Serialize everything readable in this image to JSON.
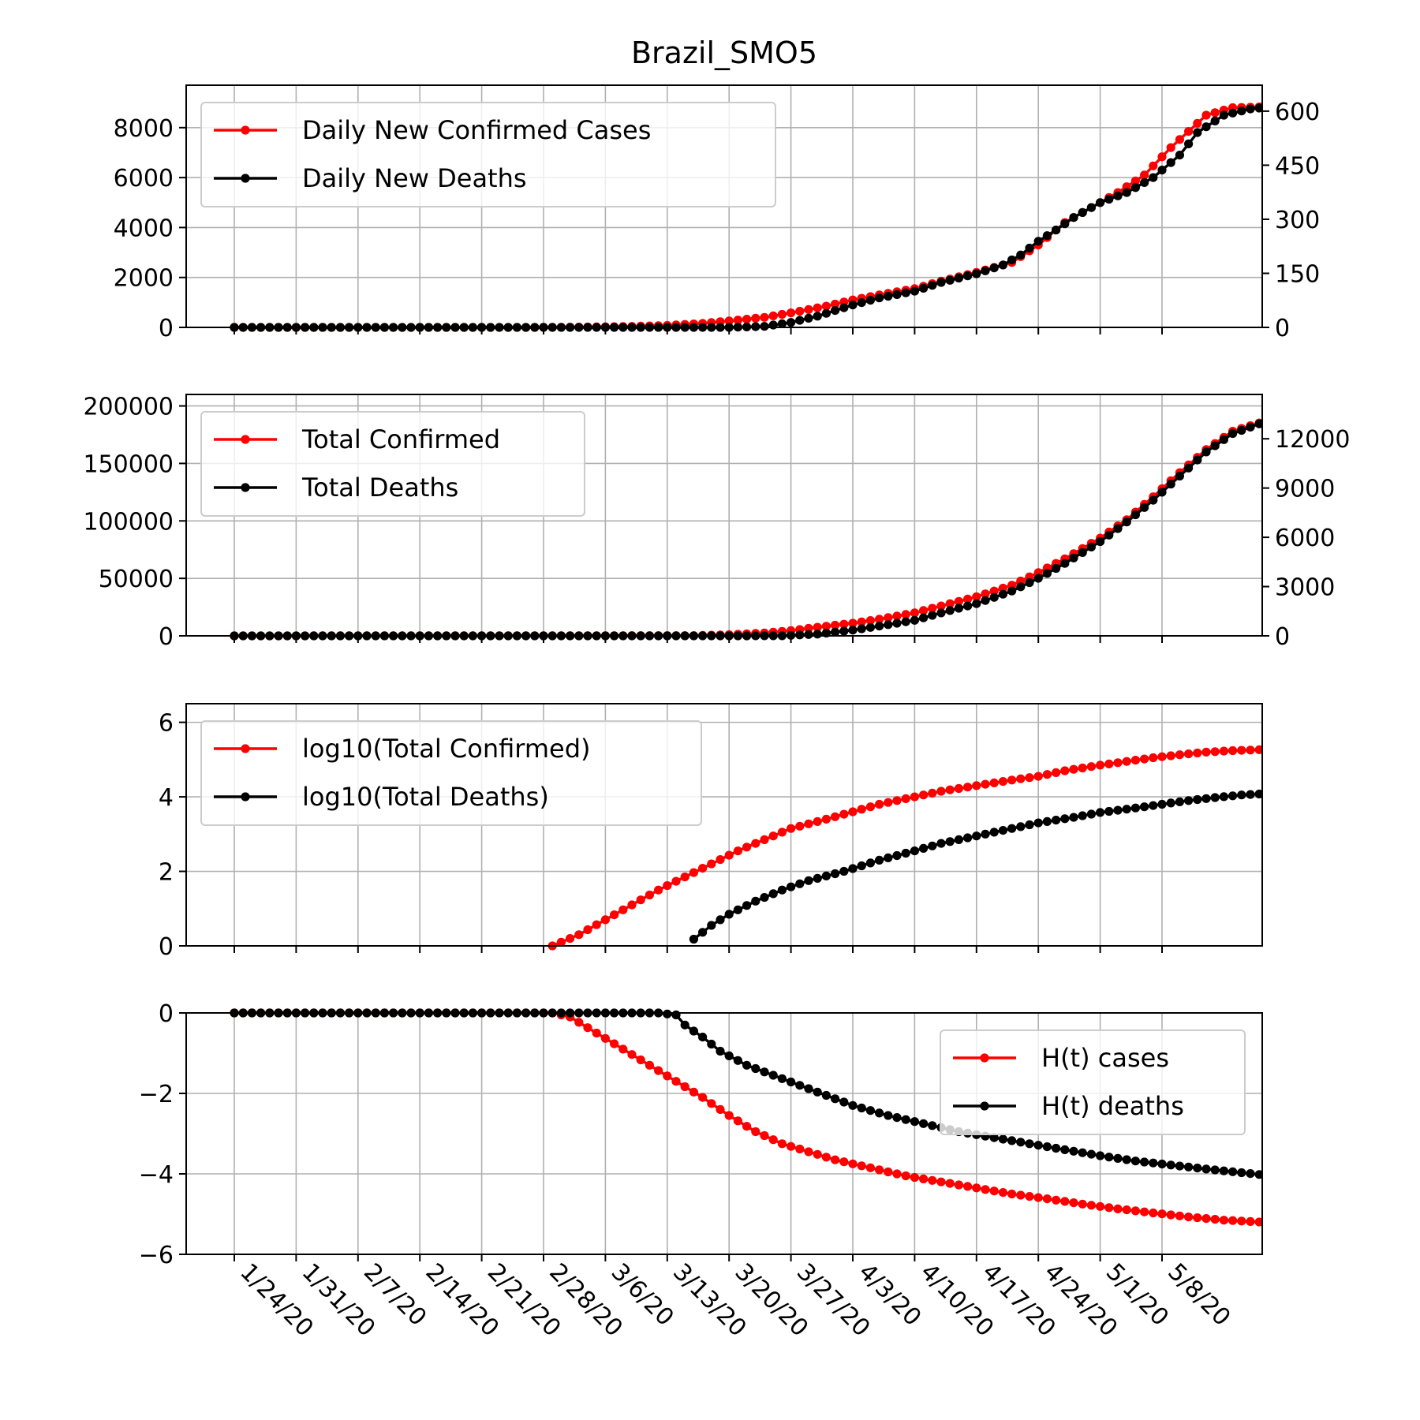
{
  "chart_data": {
    "type": "line",
    "title": "Brazil_SMO5",
    "x_tick_labels": [
      "1/24/20",
      "1/31/20",
      "2/7/20",
      "2/14/20",
      "2/21/20",
      "2/28/20",
      "3/6/20",
      "3/13/20",
      "3/20/20",
      "3/27/20",
      "4/3/20",
      "4/10/20",
      "4/17/20",
      "4/24/20",
      "5/1/20",
      "5/8/20"
    ],
    "x_tick_days": [
      0,
      7,
      14,
      21,
      28,
      35,
      42,
      49,
      56,
      63,
      70,
      77,
      84,
      91,
      98,
      105
    ],
    "n_days": 112,
    "grid": true,
    "panels": [
      {
        "id": "daily",
        "ylim_left": [
          0,
          9700
        ],
        "yticks_left": [
          0,
          2000,
          4000,
          6000,
          8000
        ],
        "ylim_right": [
          0,
          672
        ],
        "yticks_right": [
          0,
          150,
          300,
          450,
          600
        ],
        "legend_loc": "upper-left",
        "series": [
          {
            "name": "Daily New Confirmed Cases",
            "color": "#ff0000",
            "axis": "left",
            "points": [
              [
                0,
                0
              ],
              [
                34,
                0
              ],
              [
                40,
                15
              ],
              [
                45,
                40
              ],
              [
                49,
                80
              ],
              [
                53,
                160
              ],
              [
                56,
                260
              ],
              [
                60,
                400
              ],
              [
                63,
                580
              ],
              [
                67,
                850
              ],
              [
                70,
                1100
              ],
              [
                73,
                1300
              ],
              [
                77,
                1550
              ],
              [
                80,
                1850
              ],
              [
                84,
                2200
              ],
              [
                88,
                2600
              ],
              [
                91,
                3300
              ],
              [
                94,
                4200
              ],
              [
                97,
                4800
              ],
              [
                100,
                5400
              ],
              [
                103,
                6100
              ],
              [
                106,
                7200
              ],
              [
                110,
                8500
              ],
              [
                113,
                8800
              ],
              [
                118,
                8850
              ]
            ]
          },
          {
            "name": "Daily New Deaths",
            "color": "#000000",
            "axis": "left",
            "points": [
              [
                0,
                0
              ],
              [
                56,
                0
              ],
              [
                60,
                40
              ],
              [
                63,
                200
              ],
              [
                66,
                450
              ],
              [
                70,
                900
              ],
              [
                73,
                1180
              ],
              [
                77,
                1450
              ],
              [
                80,
                1800
              ],
              [
                84,
                2150
              ],
              [
                87,
                2500
              ],
              [
                89,
                2900
              ],
              [
                91,
                3450
              ],
              [
                93,
                3900
              ],
              [
                95,
                4400
              ],
              [
                98,
                5000
              ],
              [
                101,
                5400
              ],
              [
                104,
                6000
              ],
              [
                107,
                6900
              ],
              [
                109,
                7800
              ],
              [
                112,
                8500
              ],
              [
                115,
                8750
              ],
              [
                118,
                8850
              ]
            ]
          }
        ]
      },
      {
        "id": "total",
        "ylim_left": [
          0,
          210000
        ],
        "yticks_left": [
          0,
          50000,
          100000,
          150000,
          200000
        ],
        "ylim_right": [
          0,
          14700
        ],
        "yticks_right": [
          0,
          3000,
          6000,
          9000,
          12000
        ],
        "legend_loc": "upper-left",
        "series": [
          {
            "name": "Total Confirmed",
            "color": "#ff0000",
            "axis": "left",
            "points": [
              [
                0,
                0
              ],
              [
                52,
                200
              ],
              [
                56,
                1000
              ],
              [
                60,
                2500
              ],
              [
                63,
                4500
              ],
              [
                66,
                7500
              ],
              [
                70,
                11000
              ],
              [
                73,
                14500
              ],
              [
                77,
                20000
              ],
              [
                80,
                26000
              ],
              [
                84,
                34000
              ],
              [
                88,
                44000
              ],
              [
                91,
                55000
              ],
              [
                94,
                67000
              ],
              [
                98,
                85000
              ],
              [
                101,
                101000
              ],
              [
                104,
                121000
              ],
              [
                107,
                142000
              ],
              [
                110,
                162000
              ],
              [
                113,
                178000
              ],
              [
                118,
                190000
              ]
            ]
          },
          {
            "name": "Total Deaths",
            "color": "#000000",
            "axis": "left",
            "points": [
              [
                0,
                0
              ],
              [
                56,
                0
              ],
              [
                62,
                100
              ],
              [
                66,
                1500
              ],
              [
                70,
                5000
              ],
              [
                73,
                8500
              ],
              [
                77,
                13500
              ],
              [
                80,
                20000
              ],
              [
                84,
                28000
              ],
              [
                88,
                39000
              ],
              [
                91,
                50000
              ],
              [
                94,
                63000
              ],
              [
                98,
                82000
              ],
              [
                101,
                99000
              ],
              [
                104,
                118000
              ],
              [
                107,
                139000
              ],
              [
                110,
                160000
              ],
              [
                113,
                176000
              ],
              [
                118,
                190000
              ]
            ]
          }
        ]
      },
      {
        "id": "log",
        "ylim_left": [
          0,
          6.5
        ],
        "yticks_left": [
          0,
          2,
          4,
          6
        ],
        "legend_loc": "upper-left",
        "series": [
          {
            "name": "log10(Total Confirmed)",
            "color": "#ff0000",
            "axis": "left",
            "points": [
              [
                36,
                0
              ],
              [
                39,
                0.3
              ],
              [
                42,
                0.7
              ],
              [
                45,
                1.1
              ],
              [
                48,
                1.5
              ],
              [
                51,
                1.85
              ],
              [
                54,
                2.2
              ],
              [
                57,
                2.55
              ],
              [
                60,
                2.85
              ],
              [
                63,
                3.15
              ],
              [
                67,
                3.4
              ],
              [
                70,
                3.6
              ],
              [
                73,
                3.8
              ],
              [
                77,
                4.0
              ],
              [
                80,
                4.15
              ],
              [
                84,
                4.3
              ],
              [
                88,
                4.45
              ],
              [
                91,
                4.55
              ],
              [
                94,
                4.7
              ],
              [
                98,
                4.85
              ],
              [
                101,
                4.95
              ],
              [
                104,
                5.05
              ],
              [
                107,
                5.13
              ],
              [
                110,
                5.2
              ],
              [
                113,
                5.24
              ],
              [
                118,
                5.28
              ]
            ]
          },
          {
            "name": "log10(Total Deaths)",
            "color": "#000000",
            "axis": "left",
            "points": [
              [
                52,
                0.18
              ],
              [
                54,
                0.55
              ],
              [
                56,
                0.85
              ],
              [
                59,
                1.2
              ],
              [
                62,
                1.5
              ],
              [
                65,
                1.75
              ],
              [
                69,
                2.0
              ],
              [
                73,
                2.3
              ],
              [
                77,
                2.55
              ],
              [
                80,
                2.75
              ],
              [
                84,
                2.95
              ],
              [
                88,
                3.15
              ],
              [
                91,
                3.3
              ],
              [
                95,
                3.45
              ],
              [
                98,
                3.58
              ],
              [
                102,
                3.7
              ],
              [
                105,
                3.8
              ],
              [
                108,
                3.9
              ],
              [
                111,
                3.98
              ],
              [
                114,
                4.05
              ],
              [
                118,
                4.1
              ]
            ]
          }
        ]
      },
      {
        "id": "ht",
        "ylim_left": [
          -6,
          0
        ],
        "yticks_left": [
          -6,
          -4,
          -2,
          0
        ],
        "legend_loc": "upper-right",
        "series": [
          {
            "name": "H(t) cases",
            "color": "#ff0000",
            "axis": "left",
            "points": [
              [
                0,
                0
              ],
              [
                36,
                0
              ],
              [
                38,
                -0.1
              ],
              [
                41,
                -0.5
              ],
              [
                44,
                -0.9
              ],
              [
                47,
                -1.3
              ],
              [
                50,
                -1.7
              ],
              [
                53,
                -2.1
              ],
              [
                56,
                -2.55
              ],
              [
                59,
                -2.95
              ],
              [
                62,
                -3.25
              ],
              [
                65,
                -3.45
              ],
              [
                68,
                -3.65
              ],
              [
                72,
                -3.85
              ],
              [
                76,
                -4.05
              ],
              [
                80,
                -4.2
              ],
              [
                84,
                -4.35
              ],
              [
                88,
                -4.5
              ],
              [
                92,
                -4.62
              ],
              [
                96,
                -4.75
              ],
              [
                100,
                -4.87
              ],
              [
                104,
                -4.97
              ],
              [
                108,
                -5.07
              ],
              [
                112,
                -5.15
              ],
              [
                118,
                -5.22
              ]
            ]
          },
          {
            "name": "H(t) deaths",
            "color": "#000000",
            "axis": "left",
            "points": [
              [
                0,
                0
              ],
              [
                47,
                0
              ],
              [
                48,
                0
              ],
              [
                50,
                -0.05
              ],
              [
                51,
                -0.3
              ],
              [
                53,
                -0.6
              ],
              [
                55,
                -0.95
              ],
              [
                58,
                -1.3
              ],
              [
                61,
                -1.55
              ],
              [
                64,
                -1.8
              ],
              [
                67,
                -2.05
              ],
              [
                70,
                -2.3
              ],
              [
                74,
                -2.55
              ],
              [
                78,
                -2.75
              ],
              [
                82,
                -2.95
              ],
              [
                86,
                -3.1
              ],
              [
                90,
                -3.25
              ],
              [
                94,
                -3.4
              ],
              [
                98,
                -3.55
              ],
              [
                102,
                -3.68
              ],
              [
                106,
                -3.78
              ],
              [
                110,
                -3.88
              ],
              [
                114,
                -3.97
              ],
              [
                118,
                -4.06
              ]
            ]
          }
        ]
      }
    ]
  }
}
